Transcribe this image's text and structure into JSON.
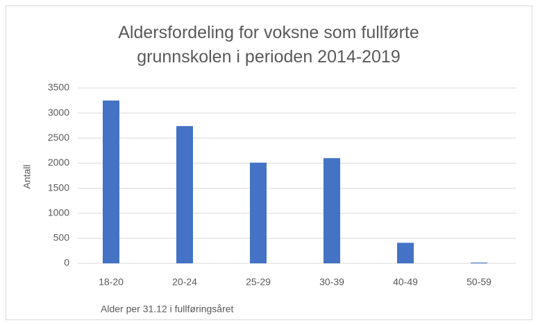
{
  "chart_data": {
    "type": "bar",
    "title": "Aldersfordeling for voksne som fullførte grunnskolen i perioden 2014-2019",
    "y_label": "Antall",
    "x_label": "Alder per 31.12 i fullføringsåret",
    "categories": [
      "18-20",
      "20-24",
      "25-29",
      "30-39",
      "40-49",
      "50-59"
    ],
    "values": [
      3250,
      2740,
      2010,
      2100,
      410,
      15
    ],
    "color": "#4472c4",
    "ylim": [
      0,
      3500
    ],
    "yticks": [
      0,
      500,
      1000,
      1500,
      2000,
      2500,
      3000,
      3500
    ],
    "grid": true
  }
}
